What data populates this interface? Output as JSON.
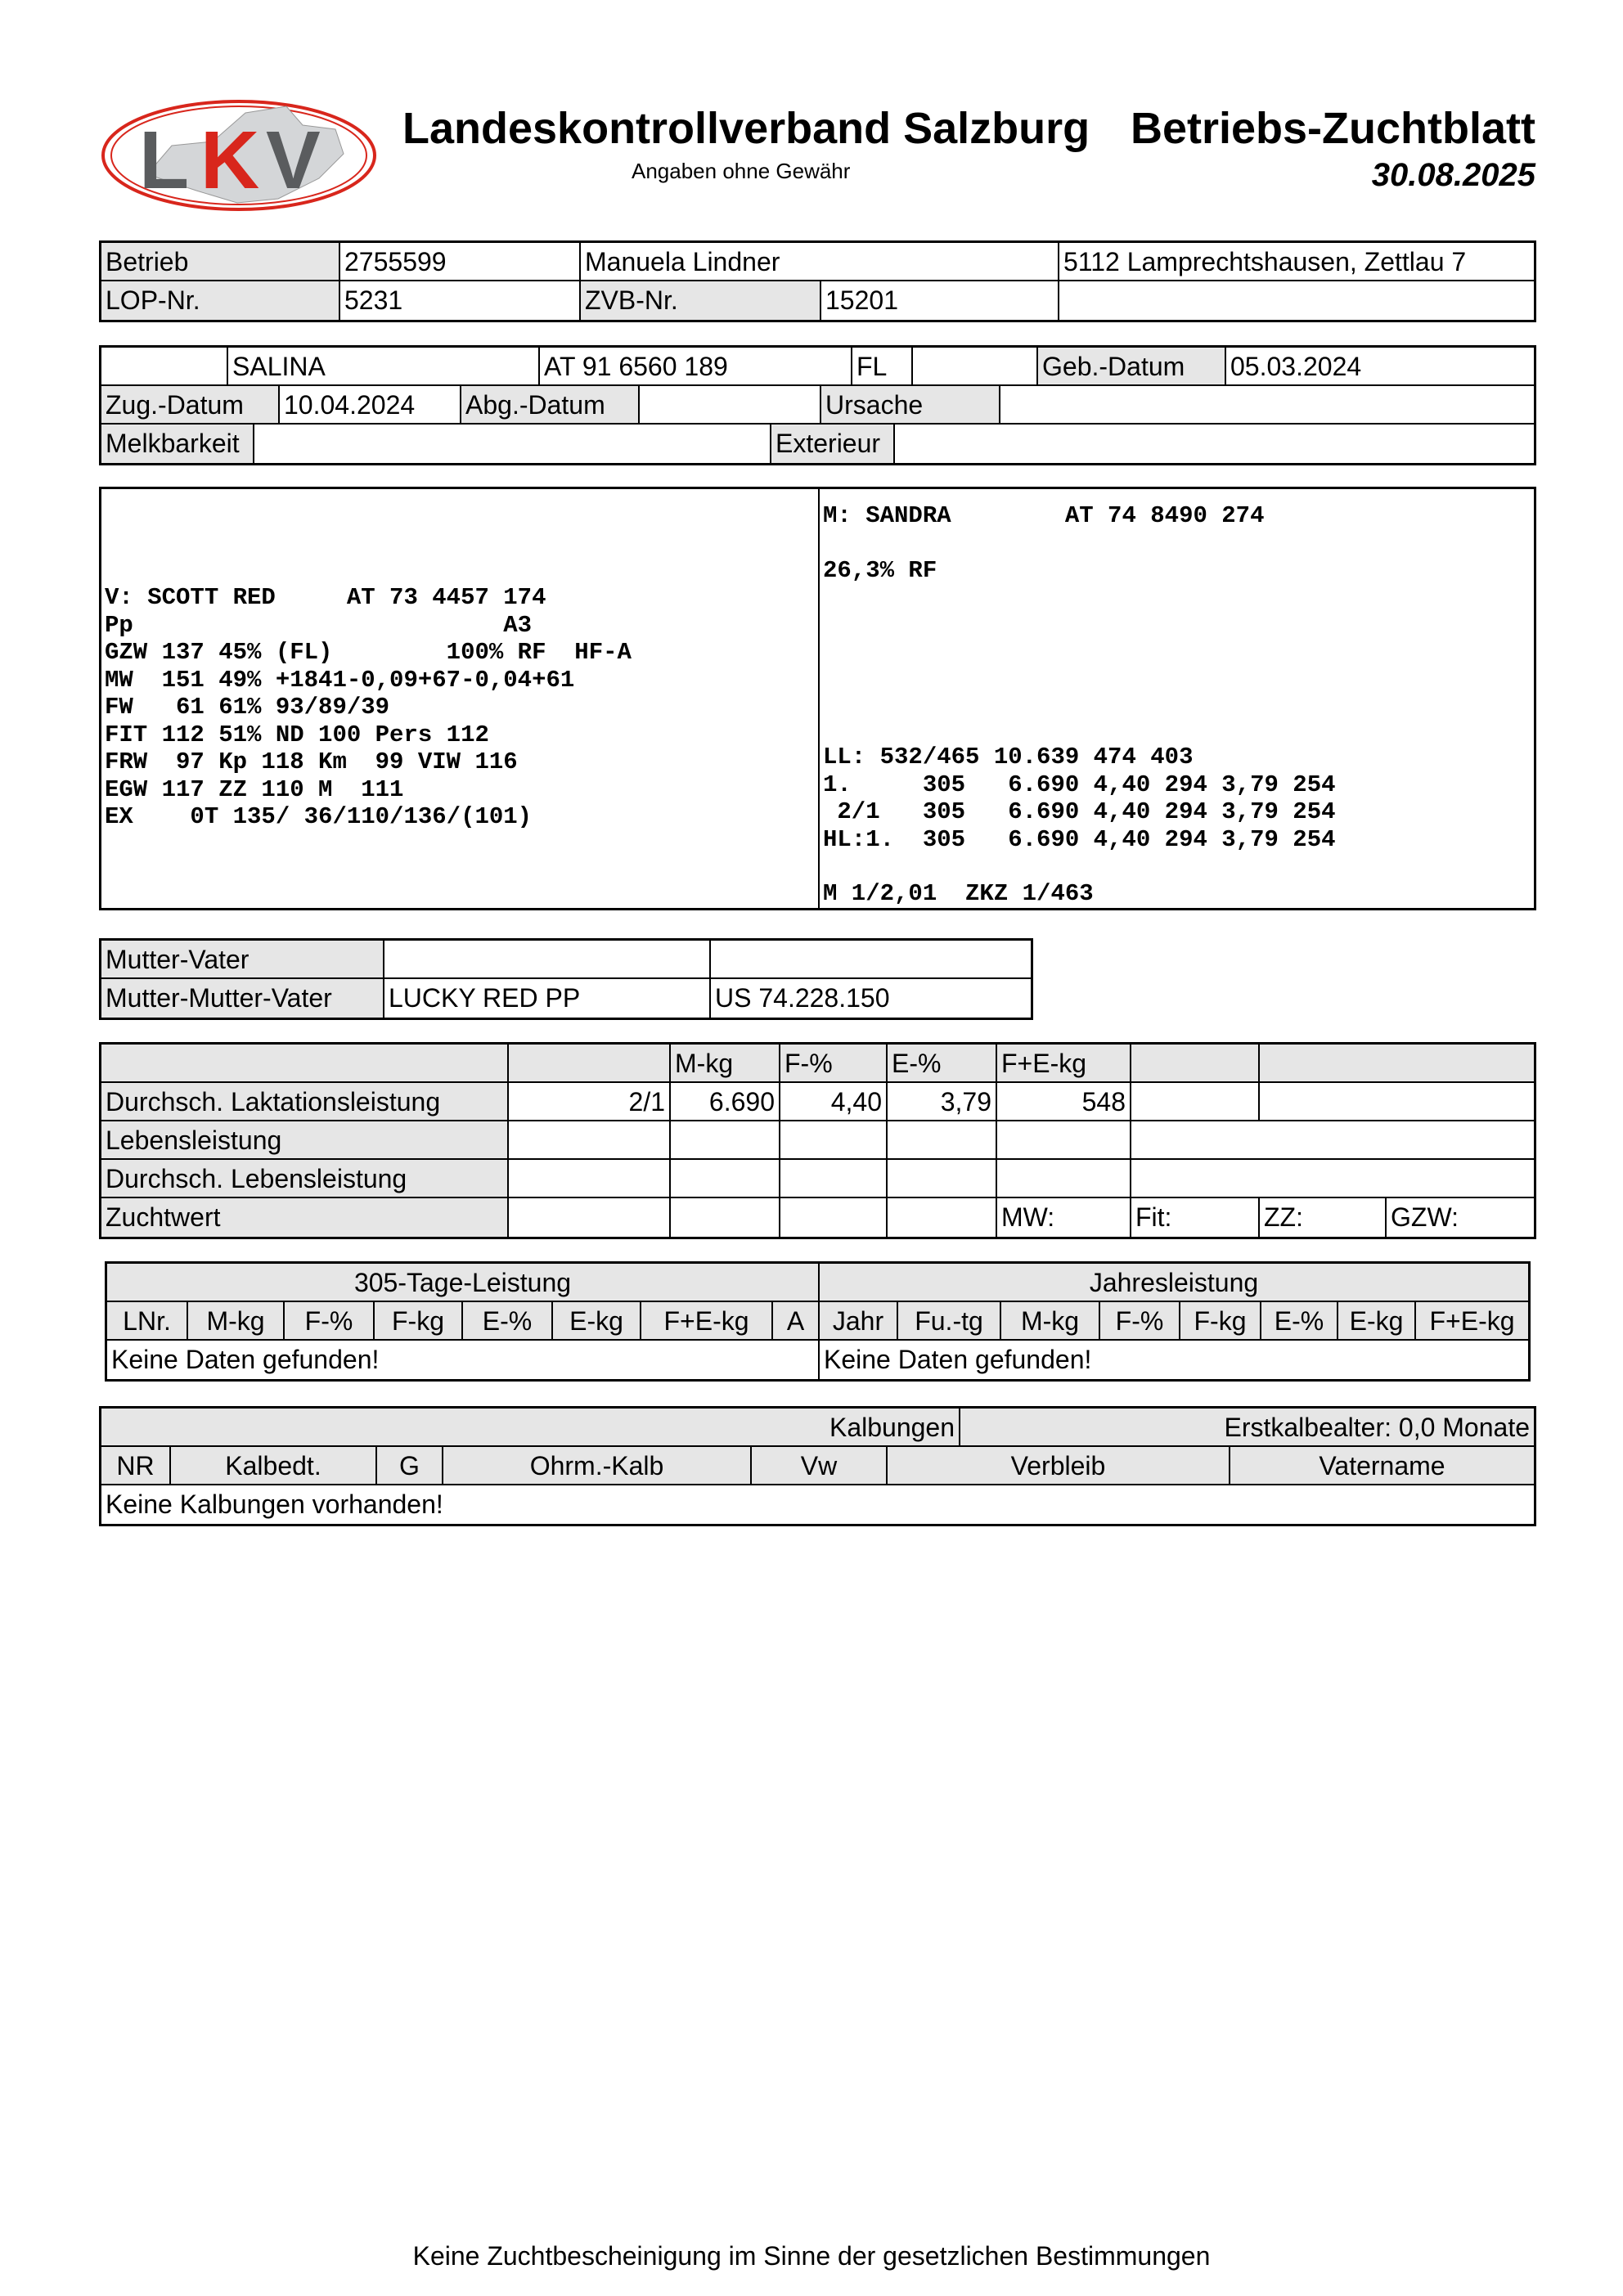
{
  "header": {
    "logo_text": "LKV",
    "org_title": "Landeskontrollverband Salzburg",
    "subtitle": "Angaben ohne Gewähr",
    "doc_title": "Betriebs-Zuchtblatt",
    "date": "30.08.2025"
  },
  "farm": {
    "betrieb_label": "Betrieb",
    "betrieb": "2755599",
    "owner": "Manuela Lindner",
    "address": "5112 Lamprechtshausen, Zettlau 7",
    "lop_label": "LOP-Nr.",
    "lop": "5231",
    "zvb_label": "ZVB-Nr.",
    "zvb": "15201"
  },
  "animal": {
    "name": "SALINA",
    "ear_tag": "AT 91 6560 189",
    "breed": "FL",
    "geb_label": "Geb.-Datum",
    "geb": "05.03.2024",
    "zug_label": "Zug.-Datum",
    "zug": "10.04.2024",
    "abg_label": "Abg.-Datum",
    "ursache_label": "Ursache",
    "melk_label": "Melkbarkeit",
    "ext_label": "Exterieur"
  },
  "pedigree": {
    "sire_lines": [
      "V: SCOTT RED     AT 73 4457 174",
      "Pp                          A3",
      "GZW 137 45% (FL)        100% RF  HF-A",
      "MW  151 49% +1841-0,09+67-0,04+61",
      "FW   61 61% 93/89/39",
      "FIT 112 51% ND 100 Pers 112",
      "FRW  97 Kp 118 Km  99 VIW 116",
      "EGW 117 ZZ 110 M  111",
      "EX    0T 135/ 36/110/136/(101)"
    ],
    "dam_line": "M: SANDRA        AT 74 8490 274",
    "dam_rf": "26,3% RF",
    "dam_perf_lines": [
      "LL: 532/465 10.639 474 403",
      "1.     305   6.690 4,40 294 3,79 254",
      " 2/1   305   6.690 4,40 294 3,79 254",
      "HL:1.  305   6.690 4,40 294 3,79 254"
    ],
    "dam_footer": "M 1/2,01  ZKZ 1/463"
  },
  "ancestors": {
    "mv_label": "Mutter-Vater",
    "mmv_label": "Mutter-Mutter-Vater",
    "mmv_name": "LUCKY RED PP",
    "mmv_id": "US 74.228.150"
  },
  "performance": {
    "headers": [
      "M-kg",
      "F-%",
      "E-%",
      "F+E-kg"
    ],
    "rows": [
      {
        "label": "Durchsch. Laktationsleistung",
        "lact": "2/1",
        "mkg": "6.690",
        "fp": "4,40",
        "ep": "3,79",
        "fekg": "548"
      },
      {
        "label": "Lebensleistung"
      },
      {
        "label": "Durchsch. Lebensleistung"
      },
      {
        "label": "Zuchtwert"
      }
    ],
    "zw_labels": [
      "MW:",
      "Fit:",
      "ZZ:",
      "GZW:"
    ]
  },
  "yield305": {
    "title": "305-Tage-Leistung",
    "columns": [
      "LNr.",
      "M-kg",
      "F-%",
      "F-kg",
      "E-%",
      "E-kg",
      "F+E-kg",
      "A"
    ],
    "empty": "Keine Daten gefunden!"
  },
  "annual": {
    "title": "Jahresleistung",
    "columns": [
      "Jahr",
      "Fu.-tg",
      "M-kg",
      "F-%",
      "F-kg",
      "E-%",
      "E-kg",
      "F+E-kg"
    ],
    "empty": "Keine Daten gefunden!"
  },
  "calvings": {
    "title": "Kalbungen",
    "first_calving_age": "Erstkalbealter: 0,0 Monate",
    "columns": [
      "NR",
      "Kalbedt.",
      "G",
      "Ohrm.-Kalb",
      "Vw",
      "Verbleib",
      "Vatername"
    ],
    "empty": "Keine Kalbungen vorhanden!"
  },
  "footer": "Keine Zuchtbescheinigung im Sinne der gesetzlichen Bestimmungen",
  "colors": {
    "logo_red": "#d8261c",
    "logo_gray": "#5a5c5e",
    "label_fill": "#e6e6e6"
  }
}
